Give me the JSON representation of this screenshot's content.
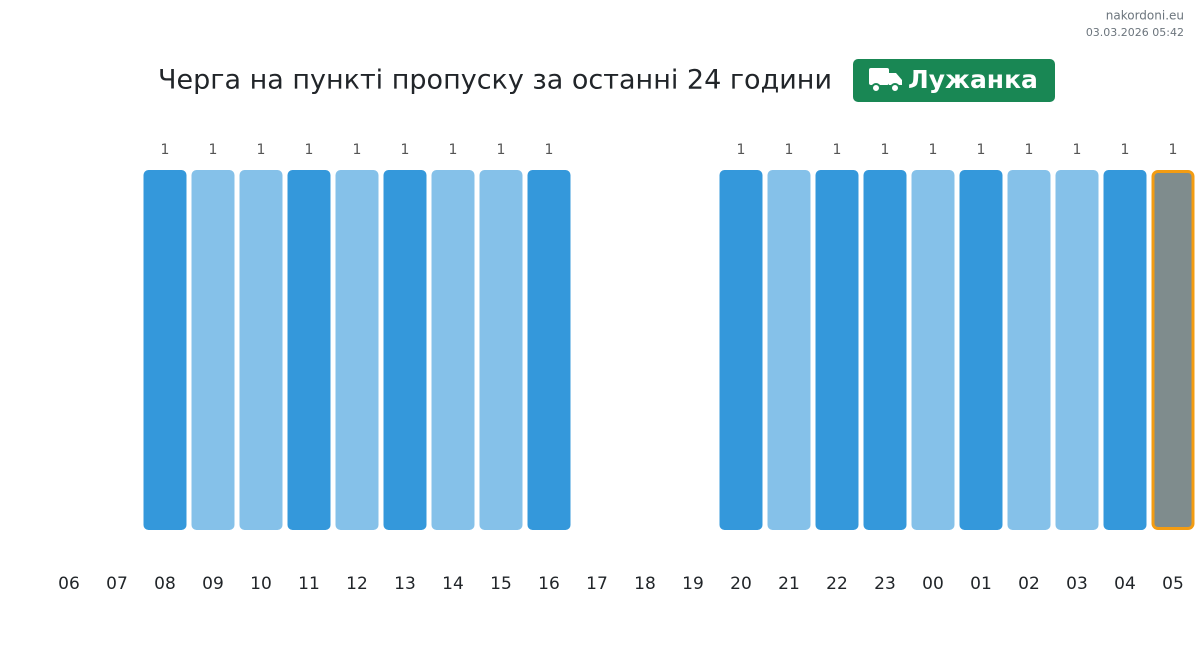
{
  "chart_data": {
    "type": "bar",
    "title": "Черга на пункті пропуску за останні 24 години",
    "badge": "Лужанка",
    "source": "nakordoni.eu",
    "timestamp": "03.03.2026 05:42",
    "categories": [
      "06",
      "07",
      "08",
      "09",
      "10",
      "11",
      "12",
      "13",
      "14",
      "15",
      "16",
      "17",
      "18",
      "19",
      "20",
      "21",
      "22",
      "23",
      "00",
      "01",
      "02",
      "03",
      "04",
      "05"
    ],
    "values": [
      null,
      null,
      1,
      1,
      1,
      1,
      1,
      1,
      1,
      1,
      1,
      null,
      null,
      null,
      1,
      1,
      1,
      1,
      1,
      1,
      1,
      1,
      1,
      1
    ],
    "colors": [
      null,
      null,
      "#3498db",
      "#85c1e9",
      "#85c1e9",
      "#3498db",
      "#85c1e9",
      "#3498db",
      "#85c1e9",
      "#85c1e9",
      "#3498db",
      null,
      null,
      null,
      "#3498db",
      "#85c1e9",
      "#3498db",
      "#3498db",
      "#85c1e9",
      "#3498db",
      "#85c1e9",
      "#85c1e9",
      "#3498db",
      "#7f8c8d"
    ],
    "highlight_color": "#f39c12",
    "ylim": [
      0,
      1
    ]
  }
}
